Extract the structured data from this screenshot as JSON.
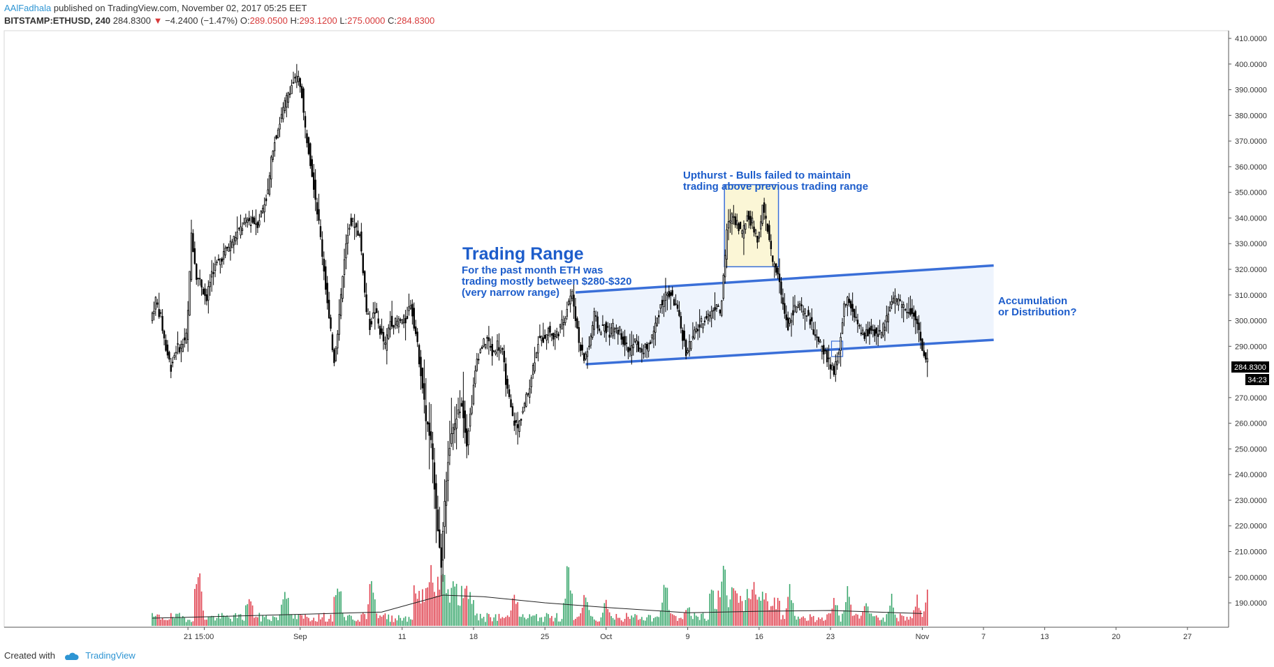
{
  "header": {
    "author": "AAlFadhala",
    "published": "published on TradingView.com, November 02, 2017 05:25 EET",
    "symbol": "BITSTAMP:ETHUSD, 240",
    "last": "284.8300",
    "arrow": "▼",
    "change": "−4.2400 (−1.47%)",
    "o_label": "O:",
    "o": "289.0500",
    "h_label": "H:",
    "h": "293.1200",
    "l_label": "L:",
    "l": "275.0000",
    "c_label": "C:",
    "c": "284.8300"
  },
  "annotations": {
    "trading_range_title": "Trading Range",
    "trading_range_1": "For the past month ETH was",
    "trading_range_2": "trading mostly between $280-$320",
    "trading_range_3": "(very narrow range)",
    "upthrust_1": "Upthurst - Bulls failed to maintain",
    "upthrust_2": "trading above previous trading range",
    "accum_1": "Accumulation",
    "accum_2": "or Distribution?"
  },
  "price_badge": "284.8300",
  "timer_badge": "34:23",
  "footer": {
    "created_with": "Created with",
    "brand": "TradingView"
  },
  "colors": {
    "accent": "#2e95d3",
    "annotation": "#1d5dcb",
    "bull_volume": "#3aa76d",
    "bear_volume": "#e0414f",
    "channel_fill": "#eef4fd",
    "box_fill": "#fbf6d6"
  },
  "chart_data": {
    "type": "candlestick",
    "symbol": "BITSTAMP:ETHUSD",
    "interval": "240",
    "y_ticks": [
      "410.0000",
      "400.0000",
      "390.0000",
      "380.0000",
      "370.0000",
      "360.0000",
      "350.0000",
      "340.0000",
      "330.0000",
      "320.0000",
      "310.0000",
      "300.0000",
      "290.0000",
      "270.0000",
      "260.0000",
      "250.0000",
      "240.0000",
      "230.0000",
      "220.0000",
      "210.0000",
      "200.0000",
      "190.0000"
    ],
    "y_tick_values": [
      410,
      400,
      390,
      380,
      370,
      360,
      350,
      340,
      330,
      320,
      310,
      300,
      290,
      270,
      260,
      250,
      240,
      230,
      220,
      210,
      200,
      190
    ],
    "ylim": [
      180.5,
      413
    ],
    "x_ticks": [
      {
        "label": "21",
        "day": -11
      },
      {
        "label": "15:00",
        "day": -9.4
      },
      {
        "label": "Sep",
        "day": 0
      },
      {
        "label": "11",
        "day": 10
      },
      {
        "label": "18",
        "day": 17
      },
      {
        "label": "25",
        "day": 24
      },
      {
        "label": "Oct",
        "day": 30
      },
      {
        "label": "9",
        "day": 38
      },
      {
        "label": "16",
        "day": 45
      },
      {
        "label": "23",
        "day": 52
      },
      {
        "label": "Nov",
        "day": 61
      },
      {
        "label": "7",
        "day": 67
      },
      {
        "label": "13",
        "day": 73
      },
      {
        "label": "20",
        "day": 80
      },
      {
        "label": "27",
        "day": 87
      }
    ],
    "x_range_days": [
      -14.5,
      88.5
    ],
    "price_path": [
      [
        -14.5,
        300
      ],
      [
        -14,
        308
      ],
      [
        -13.5,
        301
      ],
      [
        -13,
        289
      ],
      [
        -12.5,
        282
      ],
      [
        -12,
        289
      ],
      [
        -11.5,
        290
      ],
      [
        -11,
        294
      ],
      [
        -10.8,
        305
      ],
      [
        -10.5,
        334
      ],
      [
        -10,
        318
      ],
      [
        -9.5,
        314
      ],
      [
        -9,
        308
      ],
      [
        -8.5,
        319
      ],
      [
        -8,
        322
      ],
      [
        -7.5,
        325
      ],
      [
        -7,
        328
      ],
      [
        -6.5,
        331
      ],
      [
        -6,
        334
      ],
      [
        -5,
        339
      ],
      [
        -4,
        338
      ],
      [
        -3,
        350
      ],
      [
        -2.5,
        368
      ],
      [
        -2,
        375
      ],
      [
        -1.5,
        382
      ],
      [
        -1,
        389
      ],
      [
        -0.5,
        393
      ],
      [
        0,
        394
      ],
      [
        0.3,
        390
      ],
      [
        0.6,
        376
      ],
      [
        1,
        367
      ],
      [
        1.5,
        353
      ],
      [
        2,
        338
      ],
      [
        2.5,
        320
      ],
      [
        3,
        300
      ],
      [
        3.5,
        285
      ],
      [
        4,
        302
      ],
      [
        4.5,
        325
      ],
      [
        5,
        338
      ],
      [
        5.5,
        338
      ],
      [
        6,
        333
      ],
      [
        6.3,
        322
      ],
      [
        6.6,
        305
      ],
      [
        7,
        298
      ],
      [
        7.5,
        304
      ],
      [
        8,
        296
      ],
      [
        8.5,
        290
      ],
      [
        9,
        300
      ],
      [
        9.5,
        299
      ],
      [
        10,
        300
      ],
      [
        10.5,
        300
      ],
      [
        11,
        307
      ],
      [
        11.5,
        295
      ],
      [
        12,
        280
      ],
      [
        12.5,
        262
      ],
      [
        13,
        252
      ],
      [
        13.5,
        228
      ],
      [
        13.8,
        212
      ],
      [
        14,
        205
      ],
      [
        14.3,
        228
      ],
      [
        14.6,
        245
      ],
      [
        15,
        255
      ],
      [
        15.5,
        262
      ],
      [
        16,
        268
      ],
      [
        16.5,
        253
      ],
      [
        17,
        268
      ],
      [
        17.5,
        285
      ],
      [
        18,
        290
      ],
      [
        18.5,
        293
      ],
      [
        19,
        287
      ],
      [
        19.5,
        291
      ],
      [
        20,
        287
      ],
      [
        20.5,
        272
      ],
      [
        21,
        262
      ],
      [
        21.5,
        258
      ],
      [
        22,
        265
      ],
      [
        22.5,
        272
      ],
      [
        23,
        282
      ],
      [
        23.5,
        292
      ],
      [
        24,
        293
      ],
      [
        24.5,
        297
      ],
      [
        25,
        293
      ],
      [
        25.5,
        296
      ],
      [
        26,
        300
      ],
      [
        26.5,
        308
      ],
      [
        26.8,
        311
      ],
      [
        27,
        306
      ],
      [
        27.5,
        292
      ],
      [
        28,
        285
      ],
      [
        28.5,
        290
      ],
      [
        29,
        302
      ],
      [
        29.5,
        296
      ],
      [
        30,
        298
      ],
      [
        30.5,
        295
      ],
      [
        31,
        298
      ],
      [
        31.5,
        296
      ],
      [
        32,
        291
      ],
      [
        32.5,
        288
      ],
      [
        33,
        292
      ],
      [
        33.5,
        288
      ],
      [
        34,
        289
      ],
      [
        34.5,
        292
      ],
      [
        35,
        298
      ],
      [
        35.5,
        306
      ],
      [
        36,
        310
      ],
      [
        36.5,
        310
      ],
      [
        37,
        306
      ],
      [
        37.5,
        297
      ],
      [
        38,
        288
      ],
      [
        38.5,
        292
      ],
      [
        39,
        296
      ],
      [
        39.5,
        299
      ],
      [
        40,
        302
      ],
      [
        40.5,
        303
      ],
      [
        41,
        307
      ],
      [
        41.3,
        302
      ],
      [
        41.6,
        312
      ],
      [
        42,
        335
      ],
      [
        42.5,
        342
      ],
      [
        43,
        338
      ],
      [
        43.5,
        334
      ],
      [
        44,
        341
      ],
      [
        44.5,
        338
      ],
      [
        45,
        331
      ],
      [
        45.5,
        344
      ],
      [
        46,
        336
      ],
      [
        46.5,
        322
      ],
      [
        47,
        318
      ],
      [
        47.5,
        306
      ],
      [
        48,
        298
      ],
      [
        48.5,
        304
      ],
      [
        49,
        306
      ],
      [
        49.5,
        303
      ],
      [
        50,
        302
      ],
      [
        50.5,
        296
      ],
      [
        51,
        291
      ],
      [
        51.5,
        288
      ],
      [
        52,
        284
      ],
      [
        52.5,
        279
      ],
      [
        53,
        288
      ],
      [
        53.5,
        306
      ],
      [
        54,
        308
      ],
      [
        54.5,
        302
      ],
      [
        55,
        296
      ],
      [
        55.5,
        294
      ],
      [
        56,
        296
      ],
      [
        56.5,
        296
      ],
      [
        57,
        295
      ],
      [
        57.5,
        298
      ],
      [
        58,
        307
      ],
      [
        58.5,
        308
      ],
      [
        59,
        306
      ],
      [
        59.5,
        305
      ],
      [
        60,
        304
      ],
      [
        60.5,
        301
      ],
      [
        61,
        294
      ],
      [
        61.2,
        287
      ],
      [
        61.5,
        285
      ]
    ],
    "channel": {
      "upper": [
        [
          27,
          311
        ],
        [
          68,
          321.5
        ]
      ],
      "lower": [
        [
          28,
          283
        ],
        [
          68,
          292.5
        ]
      ]
    },
    "upthrust_box": {
      "x": [
        41.6,
        46.9
      ],
      "y": [
        321,
        353
      ]
    },
    "small_box": {
      "x": [
        52.1,
        53.2
      ],
      "y": [
        286,
        292
      ]
    },
    "volume_moving_average": [
      [
        -14.5,
        0.1
      ],
      [
        0,
        0.15
      ],
      [
        8,
        0.18
      ],
      [
        14,
        0.4
      ],
      [
        18,
        0.38
      ],
      [
        24,
        0.3
      ],
      [
        30,
        0.24
      ],
      [
        38,
        0.17
      ],
      [
        45,
        0.19
      ],
      [
        52,
        0.2
      ],
      [
        61,
        0.16
      ]
    ],
    "volume_peaks": [
      [
        -10,
        0.95
      ],
      [
        -5,
        0.52
      ],
      [
        -1.5,
        0.7
      ],
      [
        3.7,
        0.78
      ],
      [
        7,
        0.85
      ],
      [
        12.8,
        1.0
      ],
      [
        14,
        1.05
      ],
      [
        15,
        0.72
      ],
      [
        13.5,
        0.74
      ],
      [
        21,
        0.59
      ],
      [
        26.3,
        1.0
      ],
      [
        28,
        0.55
      ],
      [
        30,
        0.45
      ],
      [
        35.8,
        0.7
      ],
      [
        38,
        0.36
      ],
      [
        41.5,
        1.0
      ],
      [
        42.5,
        0.8
      ],
      [
        44.5,
        0.62
      ],
      [
        48,
        0.56
      ],
      [
        52.4,
        0.43
      ],
      [
        53.7,
        0.62
      ],
      [
        55.5,
        0.38
      ],
      [
        58,
        0.42
      ],
      [
        60.5,
        0.45
      ],
      [
        61.5,
        0.52
      ]
    ]
  }
}
